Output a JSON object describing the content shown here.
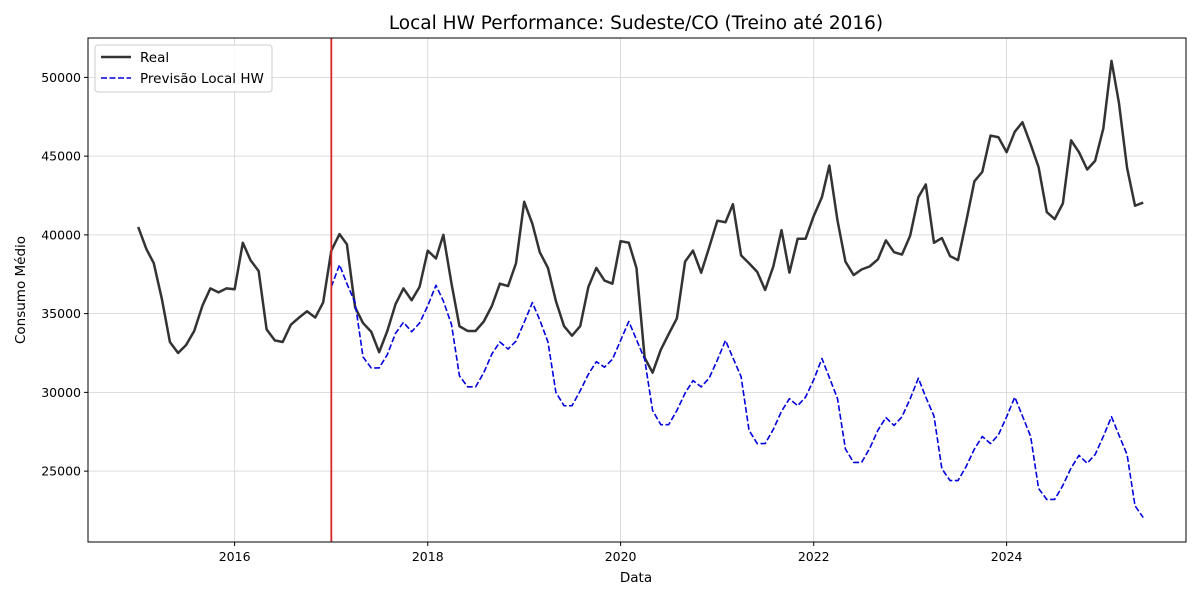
{
  "chart_data": {
    "type": "line",
    "title": "Local HW Performance: Sudeste/CO (Treino até 2016)",
    "xlabel": "Data",
    "ylabel": "Consumo Médio",
    "xlim": [
      "2014-06-25",
      "2025-11-10"
    ],
    "ylim": [
      20500,
      52500
    ],
    "x_ticks": [
      "2016-01-01",
      "2018-01-01",
      "2020-01-01",
      "2022-01-01",
      "2024-01-01"
    ],
    "x_tick_labels": [
      "2016",
      "2018",
      "2020",
      "2022",
      "2024"
    ],
    "y_ticks": [
      25000,
      30000,
      35000,
      40000,
      45000,
      50000
    ],
    "y_tick_labels": [
      "25000",
      "30000",
      "35000",
      "40000",
      "45000",
      "50000"
    ],
    "grid": true,
    "legend_position": "top-left",
    "split_date": "2017-01-01",
    "split_color": "#d62728",
    "series": [
      {
        "name": "Real",
        "color": "#333333",
        "style": "solid",
        "start": "2015-01",
        "values": [
          40500,
          39100,
          38200,
          35900,
          33200,
          32500,
          33000,
          33900,
          35500,
          36600,
          36350,
          36600,
          36550,
          39500,
          38400,
          37700,
          34000,
          33300,
          33200,
          34300,
          34750,
          35150,
          34750,
          35700,
          39000,
          40050,
          39400,
          35400,
          34400,
          33850,
          32550,
          33900,
          35600,
          36600,
          35850,
          36700,
          39000,
          38500,
          40000,
          36900,
          34200,
          33900,
          33900,
          34500,
          35500,
          36900,
          36750,
          38200,
          42100,
          40700,
          38900,
          37900,
          35800,
          34200,
          33600,
          34200,
          36700,
          37900,
          37100,
          36900,
          39600,
          39500,
          37900,
          32200,
          31250,
          32700,
          33700,
          34700,
          38300,
          39000,
          37600,
          39200,
          40900,
          40800,
          41950,
          38700,
          38200,
          37650,
          36500,
          38000,
          40300,
          37600,
          39750,
          39750,
          41200,
          42400,
          44400,
          40900,
          38300,
          37450,
          37800,
          38000,
          38450,
          39650,
          38900,
          38750,
          39950,
          42400,
          43200,
          39500,
          39800,
          38650,
          38400,
          40850,
          43400,
          44000,
          46300,
          46200,
          45250,
          46550,
          47150,
          45750,
          44300,
          41450,
          41000,
          42000,
          46000,
          45250,
          44150,
          44700,
          46750,
          51050,
          48400,
          44250,
          41850,
          42050
        ]
      },
      {
        "name": "Previsão Local HW",
        "color": "#0000dd",
        "style": "dashed",
        "start": "2017-01",
        "values": [
          36700,
          38100,
          36900,
          35700,
          32250,
          31550,
          31550,
          32400,
          33750,
          34450,
          33850,
          34400,
          35500,
          36800,
          35800,
          34300,
          31050,
          30350,
          30350,
          31250,
          32450,
          33200,
          32750,
          33250,
          34450,
          35700,
          34600,
          33200,
          30000,
          29150,
          29150,
          30100,
          31150,
          31950,
          31600,
          32100,
          33300,
          34500,
          33350,
          32100,
          28850,
          27950,
          27950,
          28850,
          29950,
          30750,
          30350,
          30900,
          32050,
          33300,
          32200,
          31000,
          27600,
          26750,
          26750,
          27650,
          28800,
          29600,
          29150,
          29700,
          30800,
          32150,
          30950,
          29600,
          26400,
          25550,
          25550,
          26450,
          27600,
          28400,
          27900,
          28450,
          29600,
          30900,
          29700,
          28500,
          25150,
          24400,
          24400,
          25300,
          26400,
          27200,
          26750,
          27300,
          28450,
          29700,
          28500,
          27200,
          23900,
          23200,
          23200,
          24100,
          25200,
          26000,
          25500,
          26050,
          27200,
          28450,
          27300,
          26050,
          22800,
          22050
        ]
      }
    ]
  }
}
